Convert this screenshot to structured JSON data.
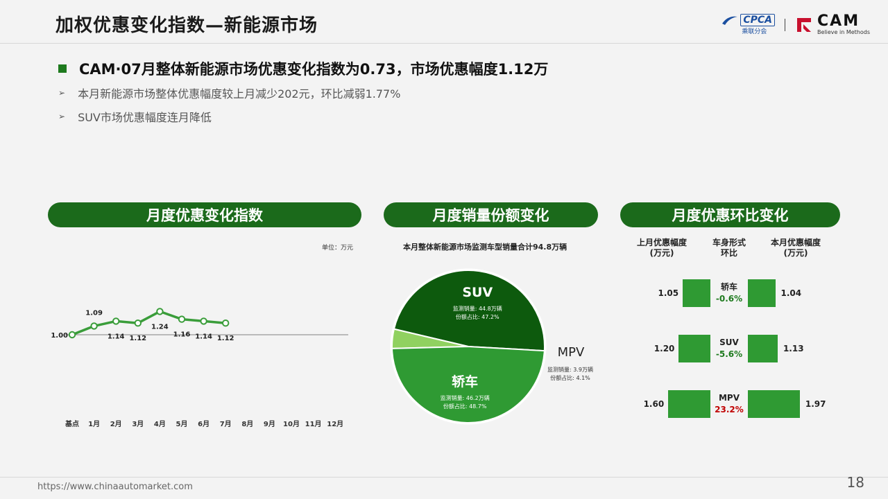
{
  "page": {
    "title": "加权优惠变化指数—新能源市场",
    "headline": "CAM·07月整体新能源市场优惠变化指数为0.73，市场优惠幅度1.12万",
    "bullets": [
      "本月新能源市场整体优惠幅度较上月减少202元，环比减弱1.77%",
      "SUV市场优惠幅度连月降低"
    ],
    "footer_url": "https://www.chinaautomarket.com",
    "page_number": "18"
  },
  "logos": {
    "cpca_text": "CPCA",
    "cpca_sub": "乘联分会",
    "cam_text": "CAM",
    "cam_slogan": "Believe in Methods"
  },
  "sections": {
    "index_title": "月度优惠变化指数",
    "share_title": "月度销量份额变化",
    "mom_title": "月度优惠环比变化"
  },
  "unit_note": "单位：万元",
  "pie_note": "本月整体新能源市场监测车型销量合计94.8万辆",
  "chart_data": [
    {
      "type": "line",
      "title": "月度优惠变化指数",
      "unit": "单位：万元",
      "categories": [
        "基点",
        "1月",
        "2月",
        "3月",
        "4月",
        "5月",
        "6月",
        "7月",
        "8月",
        "9月",
        "10月",
        "11月",
        "12月"
      ],
      "values": [
        1.0,
        1.09,
        1.14,
        1.12,
        1.24,
        1.16,
        1.14,
        1.12
      ],
      "labels": [
        "1.00",
        "1.09",
        "1.14",
        "1.12",
        "1.24",
        "1.16",
        "1.14",
        "1.12"
      ],
      "baseline": 1.0,
      "color": "#3a9d3a"
    },
    {
      "type": "pie",
      "title": "月度销量份额变化",
      "note": "本月整体新能源市场监测车型销量合计94.8万辆",
      "slices": [
        {
          "name": "SUV",
          "share": 47.2,
          "volume_line": "监测销量: 44.8万辆",
          "share_line": "份额占比: 47.2%",
          "color": "#0d5a0d"
        },
        {
          "name": "MPV",
          "share": 4.1,
          "volume_line": "监测销量: 3.9万辆",
          "share_line": "份额占比: 4.1%",
          "color": "#90d160"
        },
        {
          "name": "轿车",
          "share": 48.7,
          "volume_line": "监测销量: 46.2万辆",
          "share_line": "份额占比: 48.7%",
          "color": "#2f9a33"
        }
      ]
    },
    {
      "type": "bar",
      "title": "月度优惠环比变化",
      "headers": {
        "left": "上月优惠幅度\n(万元)",
        "middle": "车身形式\n环比",
        "right": "本月优惠幅度\n(万元)"
      },
      "rows": [
        {
          "type": "轿车",
          "prev": 1.05,
          "curr": 1.04,
          "prev_label": "1.05",
          "curr_label": "1.04",
          "mom": "-0.6%",
          "mom_color": "#1e7a1e"
        },
        {
          "type": "SUV",
          "prev": 1.2,
          "curr": 1.13,
          "prev_label": "1.20",
          "curr_label": "1.13",
          "mom": "-5.6%",
          "mom_color": "#1e7a1e"
        },
        {
          "type": "MPV",
          "prev": 1.6,
          "curr": 1.97,
          "prev_label": "1.60",
          "curr_label": "1.97",
          "mom": "23.2%",
          "mom_color": "#c00000"
        }
      ]
    }
  ]
}
